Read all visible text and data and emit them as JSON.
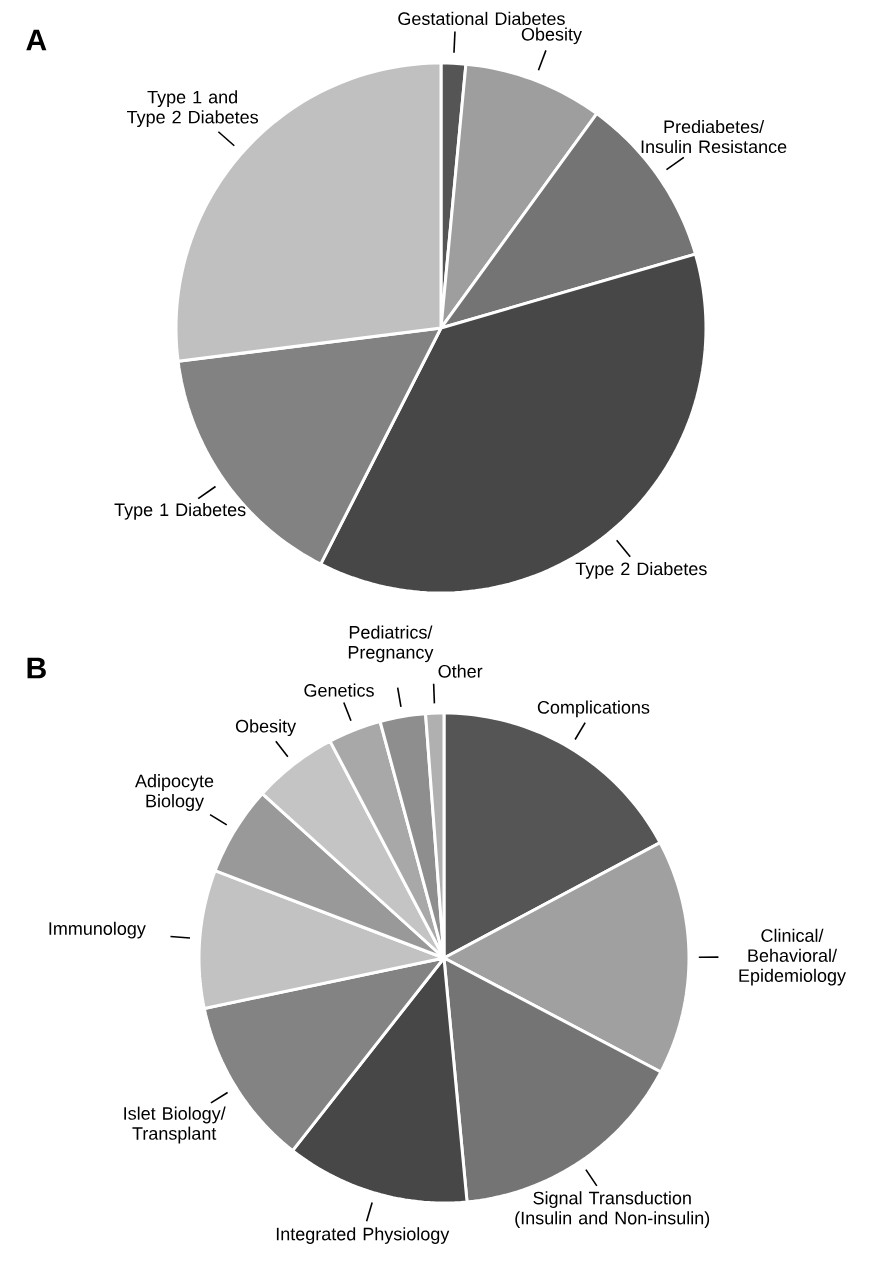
{
  "chart_data": [
    {
      "type": "pie",
      "title": "A",
      "categories": [
        "Gestational Diabetes",
        "Obesity",
        "Prediabetes/Insulin Resistance",
        "Type 2 Diabetes",
        "Type 1 Diabetes",
        "Type 1 and Type 2 Diabetes"
      ],
      "values": [
        1.5,
        8.5,
        10.5,
        37,
        15.5,
        27
      ],
      "colors": [
        "#555555",
        "#9e9e9e",
        "#747474",
        "#474747",
        "#828282",
        "#c0c0c0"
      ]
    },
    {
      "type": "pie",
      "title": "B",
      "categories": [
        "Complications",
        "Clinical/Behavioral/Epidemiology",
        "Signal Transduction (Insulin and Non-insulin)",
        "Integrated Physiology",
        "Islet Biology/Transplant",
        "Immunology",
        "Adipocyte Biology",
        "Obesity",
        "Genetics",
        "Pediatrics/Pregnancy",
        "Other"
      ],
      "values": [
        17.2,
        15.5,
        15.8,
        12.1,
        11.1,
        9.1,
        5.9,
        5.6,
        3.5,
        3.0,
        1.2
      ],
      "colors": [
        "#555555",
        "#a0a0a0",
        "#747474",
        "#474747",
        "#838383",
        "#c2c2c2",
        "#999999",
        "#c4c4c4",
        "#a8a8a8",
        "#8e8e8e",
        "#b0b0b0"
      ]
    }
  ]
}
